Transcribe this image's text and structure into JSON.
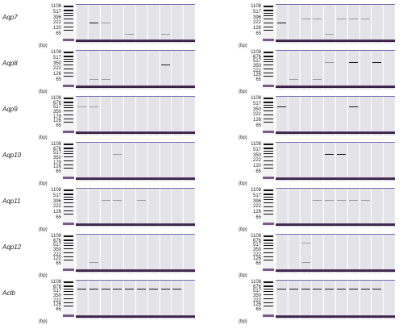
{
  "rows": [
    {
      "gene": "Aqp7",
      "panels": [
        {
          "sizes": [
            "1108",
            "517",
            "396",
            "222",
            "120",
            "65"
          ],
          "unit": "(bp)",
          "bands": [
            [
              1,
              0.45,
              "s"
            ],
            [
              2,
              0.45,
              "f"
            ],
            [
              4,
              0.75,
              "f"
            ],
            [
              7,
              0.75,
              "f"
            ]
          ]
        },
        {
          "sizes": [
            "1108",
            "517",
            "396",
            "222",
            "126",
            "65"
          ],
          "unit": "(bp)",
          "bands": [
            [
              0,
              0.45,
              "s"
            ],
            [
              2,
              0.35,
              "f"
            ],
            [
              3,
              0.35,
              "f"
            ],
            [
              5,
              0.35,
              "f"
            ],
            [
              6,
              0.35,
              "f"
            ],
            [
              7,
              0.35,
              "f"
            ],
            [
              4,
              0.75,
              "f"
            ]
          ]
        }
      ]
    },
    {
      "gene": "Aqp8",
      "panels": [
        {
          "sizes": [
            "1108",
            "517",
            "350",
            "222",
            "126",
            "65"
          ],
          "unit": "(bp)",
          "bands": [
            [
              7,
              0.35,
              "s"
            ],
            [
              1,
              0.72,
              "f"
            ],
            [
              2,
              0.72,
              "f"
            ]
          ]
        },
        {
          "sizes": [
            "1108",
            "676",
            "517",
            "350",
            "222",
            "126",
            "65"
          ],
          "unit": "(bp)",
          "bands": [
            [
              4,
              0.3,
              "f"
            ],
            [
              6,
              0.3,
              "s"
            ],
            [
              8,
              0.3,
              "s"
            ],
            [
              1,
              0.72,
              "f"
            ],
            [
              3,
              0.72,
              "f"
            ]
          ]
        }
      ]
    },
    {
      "gene": "Aqp9",
      "panels": [
        {
          "sizes": [
            "1108",
            "676",
            "517",
            "350",
            "179",
            "126",
            "65"
          ],
          "unit": "(bp)",
          "bands": [
            [
              0,
              0.25,
              "f"
            ],
            [
              1,
              0.25,
              "f"
            ]
          ]
        },
        {
          "sizes": [
            "1108",
            "517",
            "350",
            "222",
            "126",
            "65"
          ],
          "unit": "(bp)",
          "bands": [
            [
              0,
              0.25,
              "s"
            ],
            [
              6,
              0.25,
              "s"
            ]
          ]
        }
      ]
    },
    {
      "gene": "Aqp10",
      "panels": [
        {
          "sizes": [
            "1108",
            "676",
            "517",
            "350",
            "179",
            "126",
            "65"
          ],
          "unit": "(bp)",
          "bands": [
            [
              3,
              0.3,
              "f"
            ]
          ]
        },
        {
          "sizes": [
            "1108",
            "517",
            "350",
            "222",
            "120",
            "65"
          ],
          "unit": "(bp)",
          "bands": [
            [
              4,
              0.3,
              "s"
            ],
            [
              5,
              0.3,
              "s"
            ]
          ]
        }
      ]
    },
    {
      "gene": "Aqp11",
      "panels": [
        {
          "sizes": [
            "1108",
            "517",
            "396",
            "222",
            "126",
            "65"
          ],
          "unit": "(bp)",
          "bands": [
            [
              2,
              0.3,
              "f"
            ],
            [
              3,
              0.3,
              "f"
            ],
            [
              5,
              0.3,
              "f"
            ]
          ]
        },
        {
          "sizes": [
            "1108",
            "517",
            "396",
            "222",
            "126",
            "65"
          ],
          "unit": "(bp)",
          "bands": [
            [
              3,
              0.3,
              "f"
            ],
            [
              4,
              0.3,
              "f"
            ],
            [
              5,
              0.3,
              "f"
            ],
            [
              6,
              0.3,
              "f"
            ],
            [
              7,
              0.3,
              "f"
            ]
          ]
        }
      ]
    },
    {
      "gene": "Aqp12",
      "panels": [
        {
          "sizes": [
            "1108",
            "676",
            "517",
            "350",
            "222",
            "120",
            "65"
          ],
          "unit": "(bp)",
          "bands": [
            [
              1,
              0.7,
              "f"
            ]
          ]
        },
        {
          "sizes": [
            "1108",
            "676",
            "517",
            "350",
            "222",
            "126",
            "65"
          ],
          "unit": "(bp)",
          "bands": [
            [
              2,
              0.2,
              "f"
            ],
            [
              2,
              0.7,
              "f"
            ]
          ]
        }
      ]
    },
    {
      "gene": "Actb",
      "panels": [
        {
          "sizes": [
            "1108",
            "676",
            "517",
            "350",
            "222",
            "126",
            "65"
          ],
          "unit": "(bp)",
          "bands": [
            [
              0,
              0.2,
              "s"
            ],
            [
              1,
              0.2,
              "s"
            ],
            [
              2,
              0.2,
              "s"
            ],
            [
              3,
              0.2,
              "s"
            ],
            [
              4,
              0.2,
              "s"
            ],
            [
              5,
              0.2,
              "s"
            ],
            [
              6,
              0.2,
              "s"
            ],
            [
              7,
              0.2,
              "s"
            ],
            [
              8,
              0.2,
              "s"
            ]
          ]
        },
        {
          "sizes": [
            "1108",
            "676",
            "517",
            "350",
            "222",
            "126",
            "65"
          ],
          "unit": "(bp)",
          "bands": [
            [
              0,
              0.2,
              "s"
            ],
            [
              1,
              0.2,
              "s"
            ],
            [
              2,
              0.2,
              "s"
            ],
            [
              3,
              0.2,
              "s"
            ],
            [
              4,
              0.2,
              "s"
            ],
            [
              5,
              0.2,
              "s"
            ],
            [
              6,
              0.2,
              "s"
            ],
            [
              7,
              0.2,
              "s"
            ],
            [
              8,
              0.2,
              "s"
            ]
          ]
        }
      ]
    }
  ]
}
